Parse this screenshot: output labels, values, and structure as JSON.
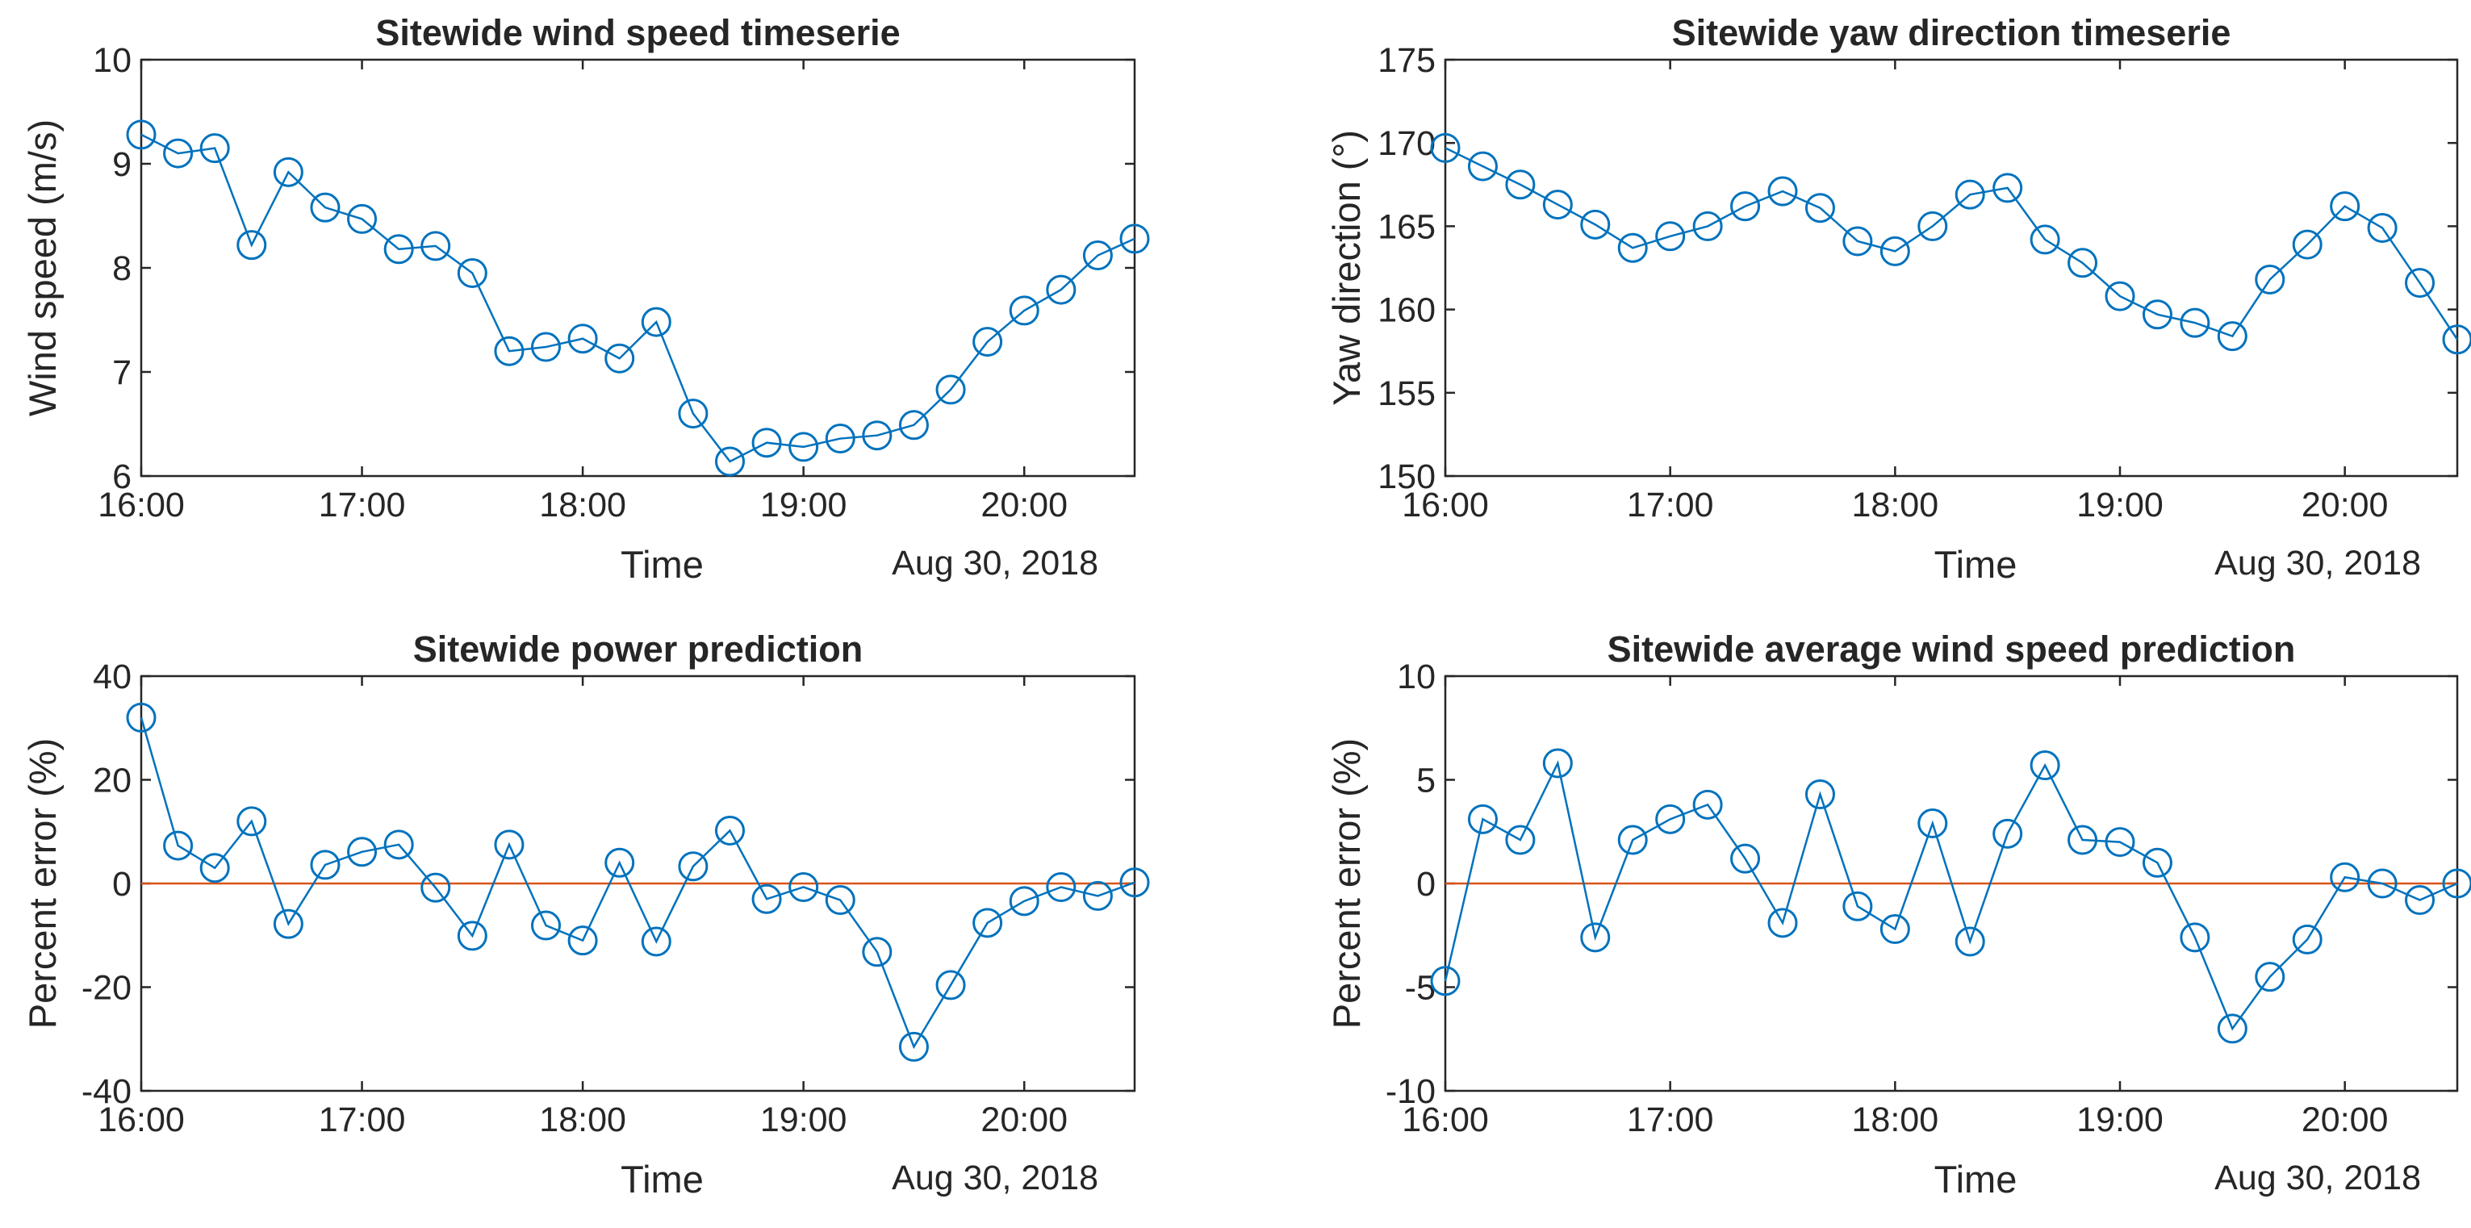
{
  "colors": {
    "series": "#0072BD",
    "reference": "#D95319",
    "axes": "#262626"
  },
  "chart_data": [
    {
      "type": "line",
      "title": "Sitewide wind speed timeserie",
      "xlabel": "Time",
      "ylabel": "Wind speed (m/s)",
      "date_label": "Aug 30, 2018",
      "x_ticklabels": [
        "16:00",
        "17:00",
        "18:00",
        "19:00",
        "20:00"
      ],
      "y_ticklabels": [
        "6",
        "7",
        "8",
        "9",
        "10"
      ],
      "ylim": [
        6,
        10
      ],
      "yticks": [
        6,
        7,
        8,
        9,
        10
      ],
      "x_hours": [
        0,
        0.1667,
        0.3333,
        0.5,
        0.6667,
        0.8333,
        1,
        1.1667,
        1.3333,
        1.5,
        1.6667,
        1.8333,
        2,
        2.1667,
        2.3333,
        2.5,
        2.6667,
        2.8333,
        3,
        3.1667,
        3.3333,
        3.5,
        3.6667,
        3.8333,
        4,
        4.1667,
        4.3333,
        4.5
      ],
      "xlim_hours": [
        0,
        4.5
      ],
      "values": [
        9.28,
        9.1,
        9.15,
        8.22,
        8.92,
        8.58,
        8.47,
        8.18,
        8.21,
        7.95,
        7.2,
        7.24,
        7.32,
        7.13,
        7.48,
        6.6,
        6.14,
        6.32,
        6.28,
        6.36,
        6.39,
        6.49,
        6.83,
        7.29,
        7.59,
        7.79,
        8.12,
        8.28
      ],
      "reference_line": null
    },
    {
      "type": "line",
      "title": "Sitewide yaw direction timeserie",
      "xlabel": "Time",
      "ylabel": "Yaw direction (°)",
      "date_label": "Aug 30, 2018",
      "x_ticklabels": [
        "16:00",
        "17:00",
        "18:00",
        "19:00",
        "20:00"
      ],
      "y_ticklabels": [
        "150",
        "155",
        "160",
        "165",
        "170",
        "175"
      ],
      "ylim": [
        150,
        175
      ],
      "yticks": [
        150,
        155,
        160,
        165,
        170,
        175
      ],
      "x_hours": [
        0,
        0.1667,
        0.3333,
        0.5,
        0.6667,
        0.8333,
        1,
        1.1667,
        1.3333,
        1.5,
        1.6667,
        1.8333,
        2,
        2.1667,
        2.3333,
        2.5,
        2.6667,
        2.8333,
        3,
        3.1667,
        3.3333,
        3.5,
        3.6667,
        3.8333,
        4,
        4.1667,
        4.3333,
        4.5
      ],
      "xlim_hours": [
        0,
        4.5
      ],
      "values": [
        169.7,
        168.6,
        167.5,
        166.3,
        165.1,
        163.7,
        164.4,
        165.0,
        166.2,
        167.1,
        166.1,
        164.1,
        163.5,
        165.0,
        166.9,
        167.3,
        164.2,
        162.8,
        160.8,
        159.7,
        159.2,
        158.4,
        161.8,
        163.9,
        166.2,
        164.9,
        161.6,
        158.2
      ],
      "reference_line": null
    },
    {
      "type": "line",
      "title": "Sitewide power prediction",
      "xlabel": "Time",
      "ylabel": "Percent error (%)",
      "date_label": "Aug 30, 2018",
      "x_ticklabels": [
        "16:00",
        "17:00",
        "18:00",
        "19:00",
        "20:00"
      ],
      "y_ticklabels": [
        "-40",
        "-20",
        "0",
        "20",
        "40"
      ],
      "ylim": [
        -40,
        40
      ],
      "yticks": [
        -40,
        -20,
        0,
        20,
        40
      ],
      "x_hours": [
        0,
        0.1667,
        0.3333,
        0.5,
        0.6667,
        0.8333,
        1,
        1.1667,
        1.3333,
        1.5,
        1.6667,
        1.8333,
        2,
        2.1667,
        2.3333,
        2.5,
        2.6667,
        2.8333,
        3,
        3.1667,
        3.3333,
        3.5,
        3.6667,
        3.8333,
        4,
        4.1667,
        4.3333,
        4.5
      ],
      "xlim_hours": [
        0,
        4.5
      ],
      "values": [
        32,
        7.3,
        3.0,
        12.0,
        -7.8,
        3.6,
        6.1,
        7.5,
        -0.8,
        -10.1,
        7.5,
        -8.1,
        -11.0,
        4.0,
        -11.2,
        3.3,
        10.2,
        -3.0,
        -0.7,
        -3.2,
        -13.2,
        -31.5,
        -19.6,
        -7.6,
        -3.4,
        -0.7,
        -2.4,
        0.2
      ],
      "reference_line": 0
    },
    {
      "type": "line",
      "title": "Sitewide average wind speed prediction",
      "xlabel": "Time",
      "ylabel": "Percent error (%)",
      "date_label": "Aug 30, 2018",
      "x_ticklabels": [
        "16:00",
        "17:00",
        "18:00",
        "19:00",
        "20:00"
      ],
      "y_ticklabels": [
        "-10",
        "-5",
        "0",
        "5",
        "10"
      ],
      "ylim": [
        -10,
        10
      ],
      "yticks": [
        -10,
        -5,
        0,
        5,
        10
      ],
      "x_hours": [
        0,
        0.1667,
        0.3333,
        0.5,
        0.6667,
        0.8333,
        1,
        1.1667,
        1.3333,
        1.5,
        1.6667,
        1.8333,
        2,
        2.1667,
        2.3333,
        2.5,
        2.6667,
        2.8333,
        3,
        3.1667,
        3.3333,
        3.5,
        3.6667,
        3.8333,
        4,
        4.1667,
        4.3333,
        4.5
      ],
      "xlim_hours": [
        0,
        4.5
      ],
      "values": [
        -4.7,
        3.1,
        2.1,
        5.8,
        -2.6,
        2.1,
        3.1,
        3.8,
        1.2,
        -1.9,
        4.3,
        -1.1,
        -2.2,
        2.9,
        -2.8,
        2.4,
        5.7,
        2.1,
        2.0,
        1.0,
        -2.6,
        -7.0,
        -4.5,
        -2.7,
        0.3,
        0.0,
        -0.8,
        0.0
      ],
      "reference_line": 0
    }
  ]
}
